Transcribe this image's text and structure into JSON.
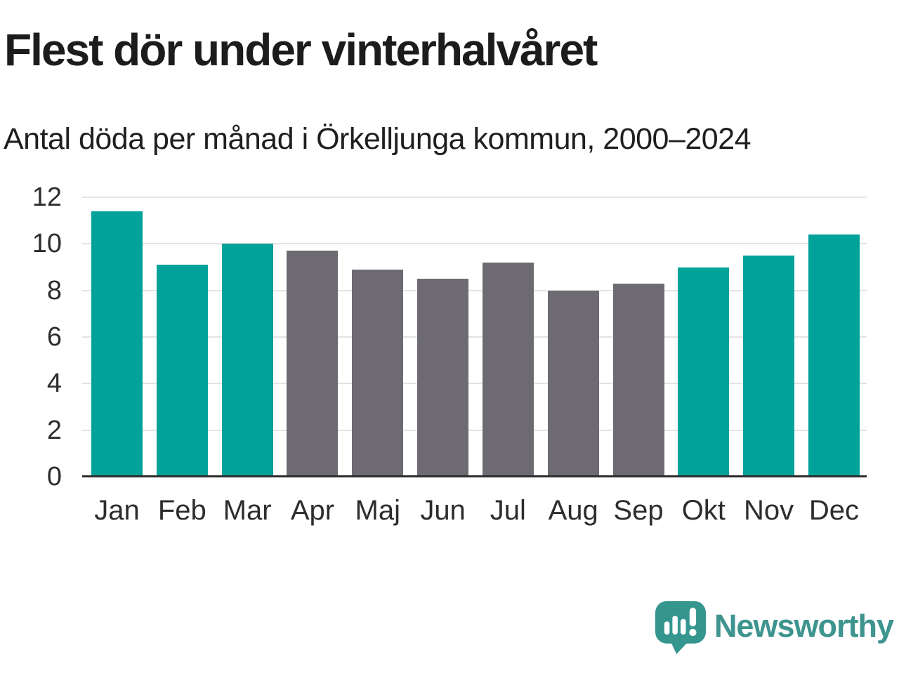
{
  "header": {
    "title": "Flest dör under vinterhalvåret",
    "subtitle": "Antal döda per månad i Örkelljunga kommun, 2000–2024"
  },
  "chart_data": {
    "type": "bar",
    "title": "Flest dör under vinterhalvåret",
    "subtitle": "Antal döda per månad i Örkelljunga kommun, 2000–2024",
    "categories": [
      "Jan",
      "Feb",
      "Mar",
      "Apr",
      "Maj",
      "Jun",
      "Jul",
      "Aug",
      "Sep",
      "Okt",
      "Nov",
      "Dec"
    ],
    "values": [
      11.4,
      9.1,
      10.0,
      9.7,
      8.9,
      8.5,
      9.2,
      8.0,
      8.3,
      9.0,
      9.5,
      10.4
    ],
    "bar_color_keys": [
      "winter",
      "winter",
      "winter",
      "summer",
      "summer",
      "summer",
      "summer",
      "summer",
      "summer",
      "winter",
      "winter",
      "winter"
    ],
    "colors": {
      "winter": "#00a29a",
      "summer": "#6d6a72"
    },
    "xlabel": "",
    "ylabel": "",
    "ylim": [
      0,
      12
    ],
    "yticks": [
      0,
      2,
      4,
      6,
      8,
      10,
      12
    ],
    "grid": true,
    "legend": "none",
    "gridline_color": "#e4e4e4",
    "axis_color": "#2d2d2d"
  },
  "branding": {
    "name": "Newsworthy",
    "icon": "newsworthy-speech-bubble-chart-icon",
    "icon_color": "#35968f",
    "text_color": "#3e948e"
  }
}
